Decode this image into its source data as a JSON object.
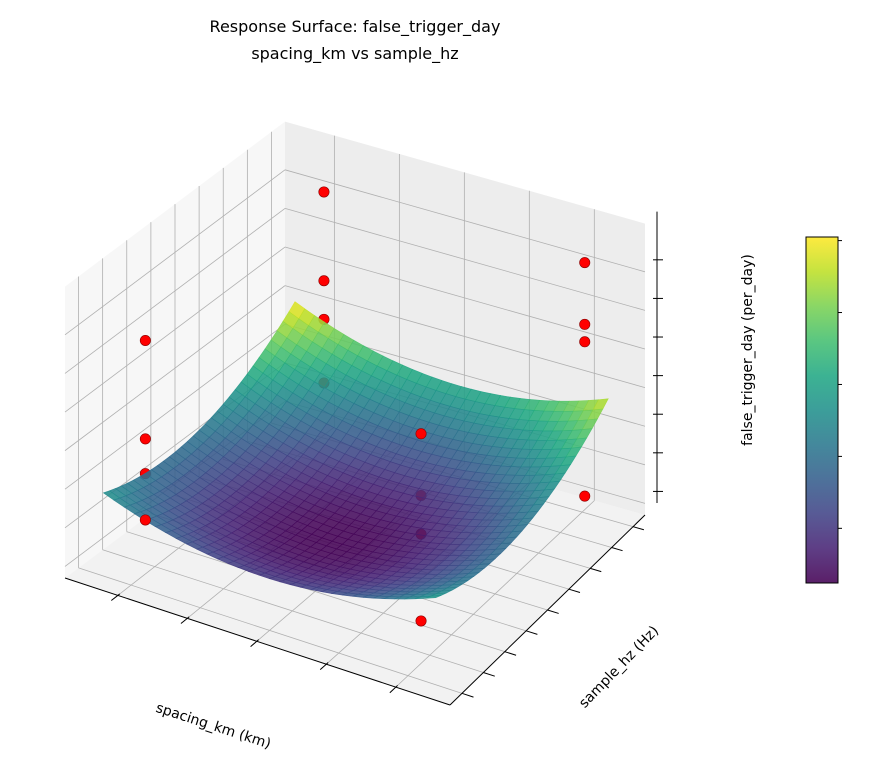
{
  "chart_data": {
    "type": "surface",
    "title": [
      "Response Surface: false_trigger_day",
      "spacing_km vs sample_hz"
    ],
    "xlabel": "spacing_km (km)",
    "ylabel": "sample_hz (Hz)",
    "zlabel": "false_trigger_day (per_day)",
    "xlim": [
      1.2,
      28.9
    ],
    "ylim": [
      11,
      239
    ],
    "zlim": [
      -0.6,
      14.5
    ],
    "xticks": [
      5,
      10,
      15,
      20,
      25
    ],
    "yticks": [
      25,
      50,
      75,
      100,
      125,
      150,
      175,
      200,
      225
    ],
    "zticks": [
      0,
      2,
      4,
      6,
      8,
      10,
      12
    ],
    "grid": true,
    "colormap": "viridis",
    "surface": {
      "x": [
        3,
        9,
        15,
        21,
        27
      ],
      "y": [
        25,
        75,
        125,
        175,
        225
      ],
      "z": [
        [
          3.71,
          3.02,
          3.17,
          4.18,
          6.04
        ],
        [
          2.47,
          1.74,
          1.86,
          2.83,
          4.65
        ],
        [
          2.08,
          1.32,
          1.4,
          2.34,
          4.12
        ],
        [
          2.57,
          1.76,
          1.81,
          2.71,
          4.46
        ],
        [
          3.91,
          3.07,
          3.09,
          3.95,
          5.66
        ]
      ]
    },
    "points": [
      {
        "x": 5,
        "y": 40,
        "z": 11.5,
        "behind_surface": false
      },
      {
        "x": 5,
        "y": 40,
        "z": 6.4,
        "behind_surface": false
      },
      {
        "x": 5,
        "y": 40,
        "z": 4.6,
        "behind_surface": true
      },
      {
        "x": 5,
        "y": 40,
        "z": 2.2,
        "behind_surface": false
      },
      {
        "x": 25,
        "y": 40,
        "z": 11.3,
        "behind_surface": false
      },
      {
        "x": 25,
        "y": 40,
        "z": 8.1,
        "behind_surface": true
      },
      {
        "x": 25,
        "y": 40,
        "z": 6.1,
        "behind_surface": true
      },
      {
        "x": 25,
        "y": 40,
        "z": 1.6,
        "behind_surface": false
      },
      {
        "x": 5,
        "y": 228,
        "z": 12.0,
        "behind_surface": false
      },
      {
        "x": 5,
        "y": 228,
        "z": 7.4,
        "behind_surface": false
      },
      {
        "x": 5,
        "y": 228,
        "z": 5.4,
        "behind_surface": true
      },
      {
        "x": 5,
        "y": 228,
        "z": 2.1,
        "behind_surface": true
      },
      {
        "x": 25,
        "y": 228,
        "z": 12.2,
        "behind_surface": false
      },
      {
        "x": 25,
        "y": 228,
        "z": 9.0,
        "behind_surface": false
      },
      {
        "x": 25,
        "y": 228,
        "z": 8.1,
        "behind_surface": false
      },
      {
        "x": 25,
        "y": 228,
        "z": 0.1,
        "behind_surface": false
      }
    ],
    "point_color": "#ff0000",
    "colorbar": {
      "range": [
        1.24,
        6.05
      ],
      "ticks": [
        2,
        3,
        4,
        5,
        6
      ]
    }
  }
}
